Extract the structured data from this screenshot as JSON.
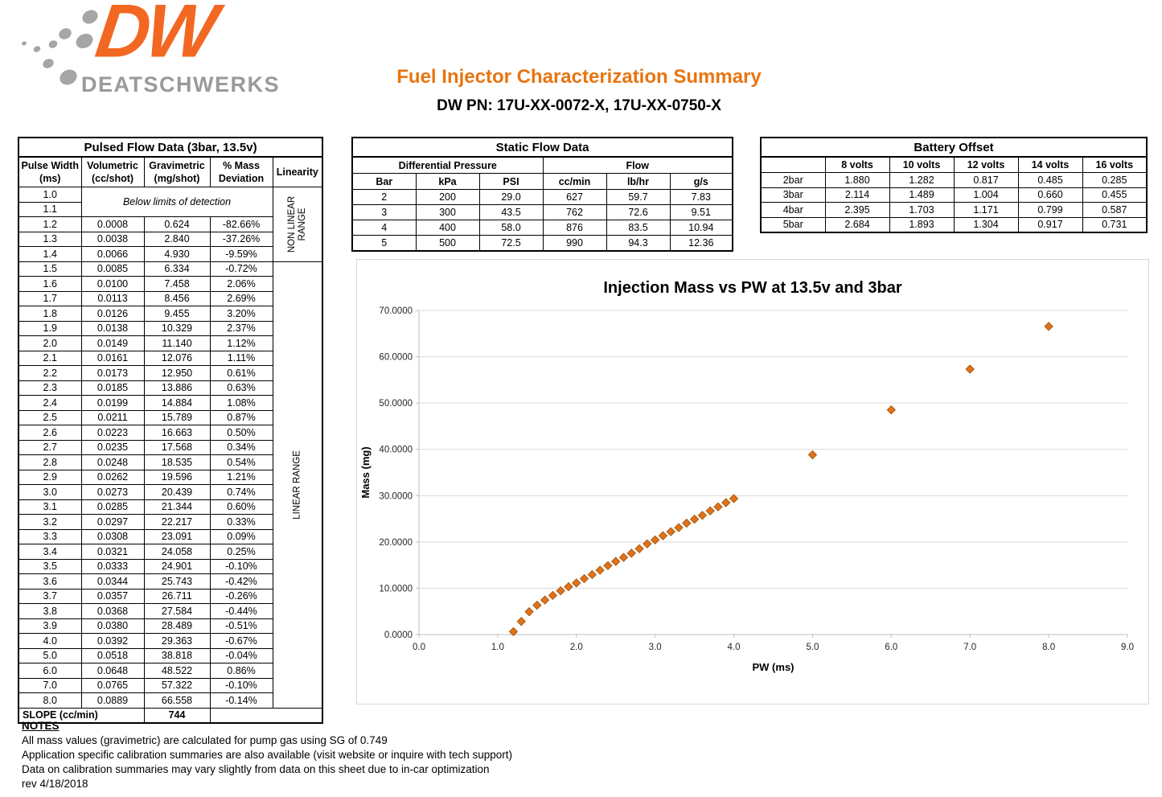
{
  "brand": {
    "dw": "DW",
    "name": "DEATSCHWERKS"
  },
  "header": {
    "title": "Fuel Injector Characterization Summary",
    "subtitle": "DW PN: 17U-XX-0072-X, 17U-XX-0750-X"
  },
  "colors": {
    "accent_orange": "#E87511",
    "logo_orange": "#F26822",
    "logo_gray": "#9A9A9A",
    "marker_fill": "#E2711B",
    "marker_stroke": "#A85B10",
    "grid": "#D9D9D9",
    "axis": "#BFBFBF"
  },
  "pulsed_flow": {
    "title": "Pulsed Flow Data (3bar, 13.5v)",
    "columns": [
      [
        "Pulse Width",
        "(ms)"
      ],
      [
        "Volumetric",
        "(cc/shot)"
      ],
      [
        "Gravimetric",
        "(mg/shot)"
      ],
      [
        "% Mass",
        "Deviation"
      ],
      [
        "",
        "Linearity"
      ]
    ],
    "below_detection_label": "Below limits of detection",
    "non_linear_label": "NON LINEAR RANGE",
    "linear_label": "LINEAR RANGE",
    "rows": [
      [
        "1.0"
      ],
      [
        "1.1"
      ],
      [
        "1.2",
        "0.0008",
        "0.624",
        "-82.66%"
      ],
      [
        "1.3",
        "0.0038",
        "2.840",
        "-37.26%"
      ],
      [
        "1.4",
        "0.0066",
        "4.930",
        "-9.59%"
      ],
      [
        "1.5",
        "0.0085",
        "6.334",
        "-0.72%"
      ],
      [
        "1.6",
        "0.0100",
        "7.458",
        "2.06%"
      ],
      [
        "1.7",
        "0.0113",
        "8.456",
        "2.69%"
      ],
      [
        "1.8",
        "0.0126",
        "9.455",
        "3.20%"
      ],
      [
        "1.9",
        "0.0138",
        "10.329",
        "2.37%"
      ],
      [
        "2.0",
        "0.0149",
        "11.140",
        "1.12%"
      ],
      [
        "2.1",
        "0.0161",
        "12.076",
        "1.11%"
      ],
      [
        "2.2",
        "0.0173",
        "12.950",
        "0.61%"
      ],
      [
        "2.3",
        "0.0185",
        "13.886",
        "0.63%"
      ],
      [
        "2.4",
        "0.0199",
        "14.884",
        "1.08%"
      ],
      [
        "2.5",
        "0.0211",
        "15.789",
        "0.87%"
      ],
      [
        "2.6",
        "0.0223",
        "16.663",
        "0.50%"
      ],
      [
        "2.7",
        "0.0235",
        "17.568",
        "0.34%"
      ],
      [
        "2.8",
        "0.0248",
        "18.535",
        "0.54%"
      ],
      [
        "2.9",
        "0.0262",
        "19.596",
        "1.21%"
      ],
      [
        "3.0",
        "0.0273",
        "20.439",
        "0.74%"
      ],
      [
        "3.1",
        "0.0285",
        "21.344",
        "0.60%"
      ],
      [
        "3.2",
        "0.0297",
        "22.217",
        "0.33%"
      ],
      [
        "3.3",
        "0.0308",
        "23.091",
        "0.09%"
      ],
      [
        "3.4",
        "0.0321",
        "24.058",
        "0.25%"
      ],
      [
        "3.5",
        "0.0333",
        "24.901",
        "-0.10%"
      ],
      [
        "3.6",
        "0.0344",
        "25.743",
        "-0.42%"
      ],
      [
        "3.7",
        "0.0357",
        "26.711",
        "-0.26%"
      ],
      [
        "3.8",
        "0.0368",
        "27.584",
        "-0.44%"
      ],
      [
        "3.9",
        "0.0380",
        "28.489",
        "-0.51%"
      ],
      [
        "4.0",
        "0.0392",
        "29.363",
        "-0.67%"
      ],
      [
        "5.0",
        "0.0518",
        "38.818",
        "-0.04%"
      ],
      [
        "6.0",
        "0.0648",
        "48.522",
        "0.86%"
      ],
      [
        "7.0",
        "0.0765",
        "57.322",
        "-0.10%"
      ],
      [
        "8.0",
        "0.0889",
        "66.558",
        "-0.14%"
      ]
    ],
    "slope_label": "SLOPE (cc/min)",
    "slope_value": "744"
  },
  "static_flow": {
    "title": "Static Flow Data",
    "group_headers": [
      "Differential Pressure",
      "Flow"
    ],
    "columns": [
      "Bar",
      "kPa",
      "PSI",
      "cc/min",
      "lb/hr",
      "g/s"
    ],
    "rows": [
      [
        "2",
        "200",
        "29.0",
        "627",
        "59.7",
        "7.83"
      ],
      [
        "3",
        "300",
        "43.5",
        "762",
        "72.6",
        "9.51"
      ],
      [
        "4",
        "400",
        "58.0",
        "876",
        "83.5",
        "10.94"
      ],
      [
        "5",
        "500",
        "72.5",
        "990",
        "94.3",
        "12.36"
      ]
    ]
  },
  "battery_offset": {
    "title": "Battery Offset",
    "columns": [
      "",
      "8 volts",
      "10 volts",
      "12 volts",
      "14 volts",
      "16 volts"
    ],
    "rows": [
      [
        "2bar",
        "1.880",
        "1.282",
        "0.817",
        "0.485",
        "0.285"
      ],
      [
        "3bar",
        "2.114",
        "1.489",
        "1.004",
        "0.660",
        "0.455"
      ],
      [
        "4bar",
        "2.395",
        "1.703",
        "1.171",
        "0.799",
        "0.587"
      ],
      [
        "5bar",
        "2.684",
        "1.893",
        "1.304",
        "0.917",
        "0.731"
      ]
    ]
  },
  "chart_data": {
    "type": "scatter",
    "title": "Injection Mass vs PW at 13.5v and 3bar",
    "xlabel": "PW (ms)",
    "ylabel": "Mass (mg)",
    "xlim": [
      0,
      9
    ],
    "ylim": [
      0,
      70
    ],
    "x_ticks": [
      "0.0",
      "1.0",
      "2.0",
      "3.0",
      "4.0",
      "5.0",
      "6.0",
      "7.0",
      "8.0",
      "9.0"
    ],
    "y_ticks": [
      "0.0000",
      "10.0000",
      "20.0000",
      "30.0000",
      "40.0000",
      "50.0000",
      "60.0000",
      "70.0000"
    ],
    "grid": "horizontal-only",
    "legend": "none",
    "marker": "diamond",
    "points": [
      [
        1.2,
        0.624
      ],
      [
        1.3,
        2.84
      ],
      [
        1.4,
        4.93
      ],
      [
        1.5,
        6.334
      ],
      [
        1.6,
        7.458
      ],
      [
        1.7,
        8.456
      ],
      [
        1.8,
        9.455
      ],
      [
        1.9,
        10.329
      ],
      [
        2.0,
        11.14
      ],
      [
        2.1,
        12.076
      ],
      [
        2.2,
        12.95
      ],
      [
        2.3,
        13.886
      ],
      [
        2.4,
        14.884
      ],
      [
        2.5,
        15.789
      ],
      [
        2.6,
        16.663
      ],
      [
        2.7,
        17.568
      ],
      [
        2.8,
        18.535
      ],
      [
        2.9,
        19.596
      ],
      [
        3.0,
        20.439
      ],
      [
        3.1,
        21.344
      ],
      [
        3.2,
        22.217
      ],
      [
        3.3,
        23.091
      ],
      [
        3.4,
        24.058
      ],
      [
        3.5,
        24.901
      ],
      [
        3.6,
        25.743
      ],
      [
        3.7,
        26.711
      ],
      [
        3.8,
        27.584
      ],
      [
        3.9,
        28.489
      ],
      [
        4.0,
        29.363
      ],
      [
        5.0,
        38.818
      ],
      [
        6.0,
        48.522
      ],
      [
        7.0,
        57.322
      ],
      [
        8.0,
        66.558
      ]
    ]
  },
  "notes": {
    "heading": "NOTES",
    "lines": [
      "All mass values (gravimetric) are calculated for pump gas using SG of 0.749",
      "Application specific calibration summaries are also available (visit website or inquire with tech support)",
      "Data on calibration summaries may vary slightly from data on this sheet due to in-car optimization"
    ],
    "revision": "rev 4/18/2018"
  }
}
